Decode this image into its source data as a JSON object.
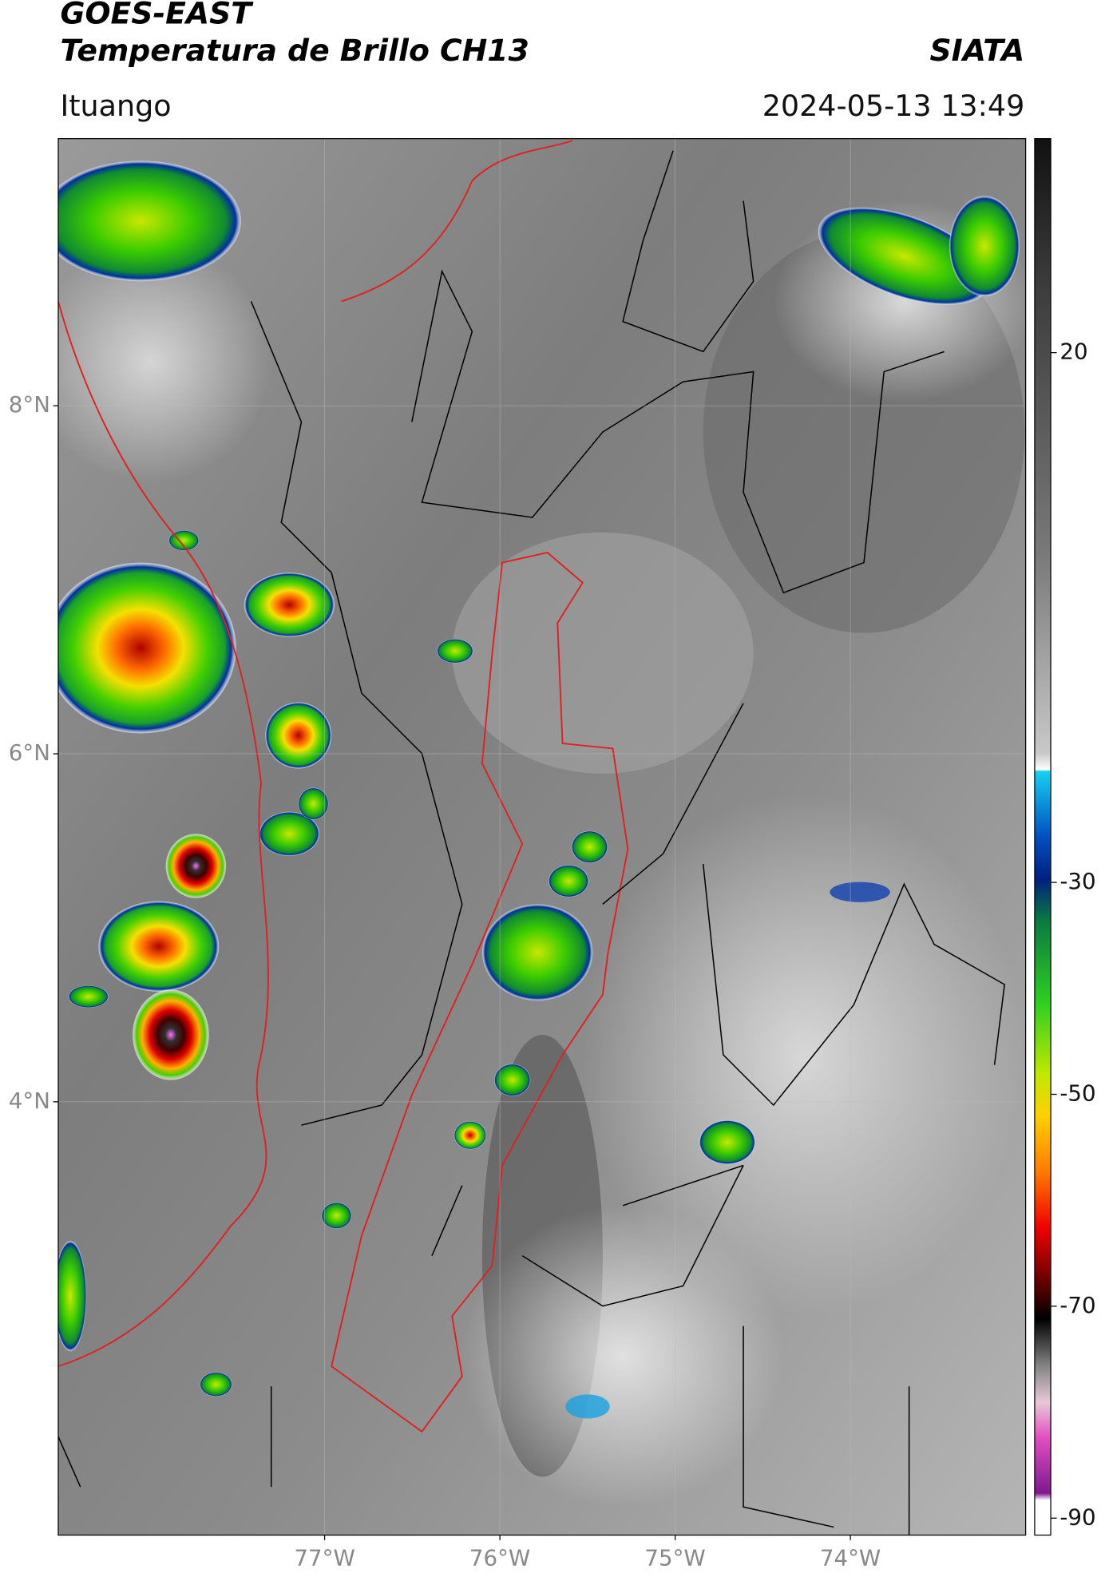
{
  "header": {
    "title": "GOES-EAST",
    "subtitle": "Temperatura de Brillo CH13",
    "agency": "SIATA",
    "location": "Ituango",
    "datetime": "2024-05-13 13:49"
  },
  "map": {
    "latlim": [
      1.51,
      9.535
    ],
    "lonlim": [
      -78.52,
      -73.0
    ],
    "lat_ticks": [
      {
        "value": 8,
        "label": "8°N"
      },
      {
        "value": 6,
        "label": "6°N"
      },
      {
        "value": 4,
        "label": "4°N"
      }
    ],
    "lon_ticks": [
      {
        "value": -77,
        "label": "77°W"
      },
      {
        "value": -76,
        "label": "76°W"
      },
      {
        "value": -75,
        "label": "75°W"
      },
      {
        "value": -74,
        "label": "74°W"
      }
    ],
    "grid": true
  },
  "colorbar": {
    "lim": [
      40.2,
      -91.6
    ],
    "ticks": [
      20,
      -30,
      -50,
      -70,
      -90
    ]
  }
}
